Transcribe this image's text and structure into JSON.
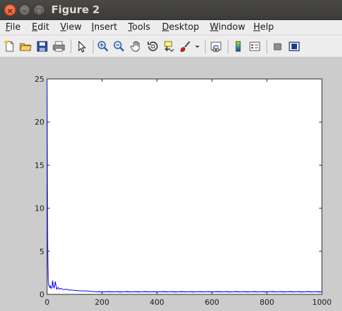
{
  "window": {
    "title": "Figure 2",
    "close_glyph": "×",
    "minimize_glyph": "–",
    "maximize_glyph": "□"
  },
  "menu": [
    "File",
    "Edit",
    "View",
    "Insert",
    "Tools",
    "Desktop",
    "Window",
    "Help"
  ],
  "toolbar": {
    "icons": [
      "new-figure-icon",
      "open-file-icon",
      "save-icon",
      "print-icon",
      "select-arrow-icon",
      "zoom-in-icon",
      "zoom-out-icon",
      "pan-hand-icon",
      "rotate-3d-icon",
      "data-cursor-icon",
      "brush-icon",
      "brush-dropdown-icon",
      "link-plot-icon",
      "colorbar-icon",
      "legend-icon",
      "hide-plot-tools-icon",
      "show-plot-tools-icon"
    ]
  },
  "chart_data": {
    "type": "line",
    "title": "",
    "xlabel": "",
    "ylabel": "",
    "xlim": [
      0,
      1000
    ],
    "ylim": [
      0,
      25
    ],
    "xticks": [
      0,
      200,
      400,
      600,
      800,
      1000
    ],
    "yticks": [
      0,
      5,
      10,
      15,
      20,
      25
    ],
    "grid": false,
    "series": [
      {
        "color": "#0000ff",
        "x": [
          0,
          1,
          2,
          3,
          4,
          5,
          6,
          8,
          10,
          12,
          15,
          18,
          20,
          25,
          30,
          35,
          40,
          45,
          50,
          60,
          70,
          80,
          90,
          100,
          120,
          140,
          160,
          180,
          200,
          250,
          300,
          350,
          400,
          450,
          500,
          550,
          600,
          650,
          700,
          750,
          800,
          850,
          900,
          950,
          1000
        ],
        "y": [
          25,
          13.3,
          6.2,
          3.5,
          2.0,
          1.4,
          1.1,
          0.9,
          0.8,
          1.0,
          0.7,
          0.8,
          1.6,
          0.7,
          1.5,
          0.6,
          0.8,
          0.6,
          0.7,
          0.55,
          0.6,
          0.5,
          0.5,
          0.45,
          0.4,
          0.4,
          0.35,
          0.3,
          0.3,
          0.3,
          0.3,
          0.3,
          0.3,
          0.3,
          0.3,
          0.3,
          0.3,
          0.3,
          0.3,
          0.3,
          0.3,
          0.3,
          0.3,
          0.3,
          0.3
        ]
      }
    ]
  }
}
